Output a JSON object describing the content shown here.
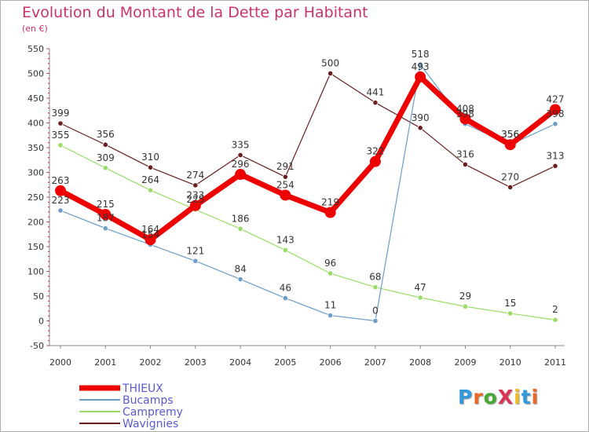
{
  "chart_data": {
    "type": "line",
    "title": "Evolution du Montant de la Dette par Habitant",
    "subtitle": "(en €)",
    "categories": [
      "2000",
      "2001",
      "2002",
      "2003",
      "2004",
      "2005",
      "2006",
      "2007",
      "2008",
      "2009",
      "2010",
      "2011"
    ],
    "ylim": [
      -50,
      550
    ],
    "yticks": [
      550,
      500,
      450,
      400,
      350,
      300,
      250,
      200,
      150,
      100,
      50,
      0,
      -50
    ],
    "grid": false,
    "legend_position": "bottom-left",
    "series": [
      {
        "name": "Wavignies",
        "color": "#6b1e1e",
        "values": [
          399,
          356,
          310,
          274,
          335,
          291,
          500,
          441,
          390,
          316,
          270,
          313
        ]
      },
      {
        "name": "Campremy",
        "color": "#99dd66",
        "values": [
          355,
          309,
          264,
          225,
          186,
          143,
          96,
          68,
          47,
          29,
          15,
          2
        ]
      },
      {
        "name": "Bucamps",
        "color": "#6a9ccc",
        "values": [
          223,
          187,
          154,
          121,
          84,
          46,
          11,
          0,
          518,
          398,
          356,
          398
        ]
      },
      {
        "name": "THIEUX",
        "color": "#ee0000",
        "values": [
          263,
          215,
          164,
          233,
          296,
          254,
          219,
          322,
          493,
          408,
          356,
          427
        ]
      }
    ]
  },
  "logo_text": "ProXiti",
  "logo_colors": [
    "#3399dd",
    "#ee6622",
    "#44aa33",
    "#dd3355",
    "#eebb22",
    "#3399dd",
    "#ee6622"
  ]
}
